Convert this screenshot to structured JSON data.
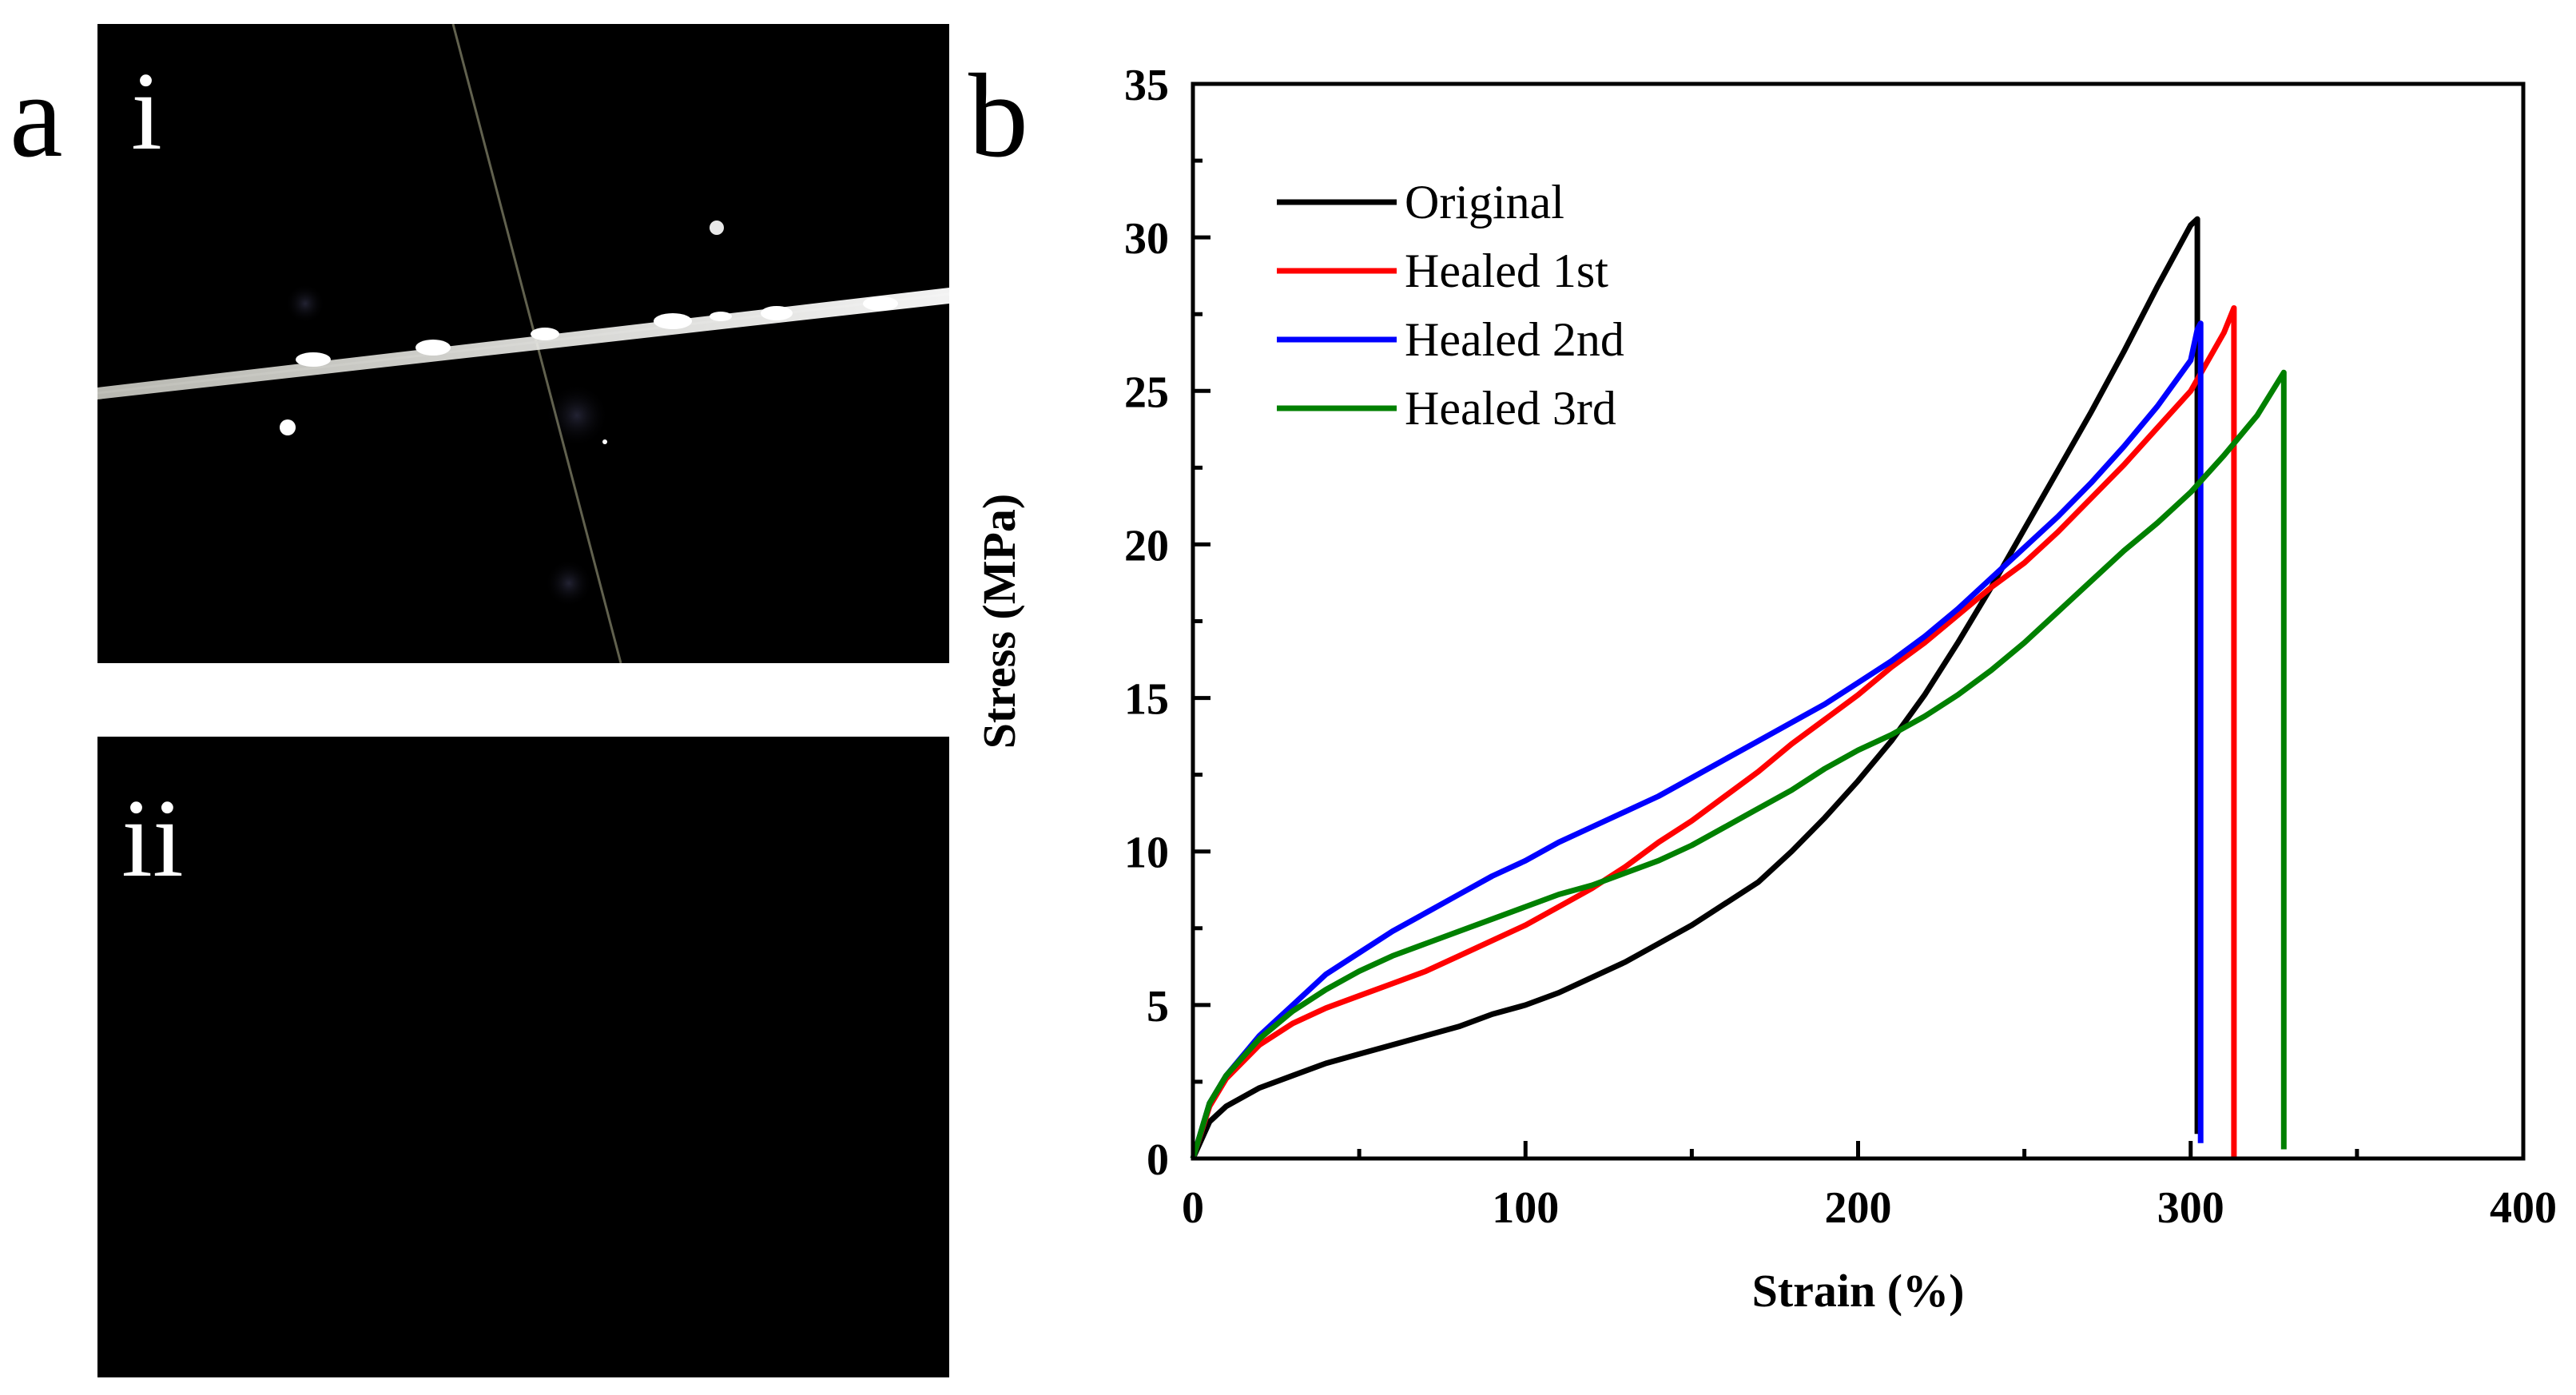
{
  "panels": {
    "a": {
      "letter": "a",
      "sub_top": "i",
      "sub_bottom": "ii"
    },
    "b": {
      "letter": "b"
    }
  },
  "chart_data": {
    "type": "line",
    "title": "",
    "xlabel": "Strain (%)",
    "ylabel": "Stress (MPa)",
    "xlim": [
      0,
      400
    ],
    "ylim": [
      0,
      35
    ],
    "xticks": [
      0,
      100,
      200,
      300,
      400
    ],
    "yticks": [
      0,
      5,
      10,
      15,
      20,
      25,
      30,
      35
    ],
    "grid": false,
    "legend_position": "top-left",
    "series": [
      {
        "name": "Original",
        "color": "#000000",
        "x": [
          0,
          5,
          10,
          20,
          30,
          40,
          50,
          60,
          70,
          80,
          90,
          100,
          110,
          120,
          130,
          140,
          150,
          160,
          170,
          180,
          190,
          200,
          210,
          220,
          230,
          240,
          250,
          260,
          270,
          280,
          290,
          300,
          302,
          302
        ],
        "y": [
          0,
          1.2,
          1.7,
          2.3,
          2.7,
          3.1,
          3.4,
          3.7,
          4.0,
          4.3,
          4.7,
          5.0,
          5.4,
          5.9,
          6.4,
          7.0,
          7.6,
          8.3,
          9.0,
          10.0,
          11.1,
          12.3,
          13.6,
          15.1,
          16.8,
          18.6,
          20.5,
          22.4,
          24.3,
          26.3,
          28.4,
          30.4,
          30.6,
          0.8
        ]
      },
      {
        "name": "Healed 1st",
        "color": "#ff0000",
        "x": [
          0,
          5,
          10,
          20,
          30,
          40,
          50,
          60,
          70,
          80,
          90,
          100,
          110,
          120,
          130,
          140,
          150,
          160,
          170,
          180,
          190,
          200,
          210,
          220,
          230,
          240,
          250,
          260,
          270,
          280,
          290,
          300,
          310,
          313,
          313
        ],
        "y": [
          0,
          1.7,
          2.6,
          3.7,
          4.4,
          4.9,
          5.3,
          5.7,
          6.1,
          6.6,
          7.1,
          7.6,
          8.2,
          8.8,
          9.5,
          10.3,
          11.0,
          11.8,
          12.6,
          13.5,
          14.3,
          15.1,
          16.0,
          16.8,
          17.7,
          18.6,
          19.4,
          20.4,
          21.5,
          22.6,
          23.8,
          25.0,
          26.9,
          27.7,
          0
        ]
      },
      {
        "name": "Healed 2nd",
        "color": "#0000ff",
        "x": [
          0,
          5,
          10,
          20,
          30,
          40,
          50,
          60,
          70,
          80,
          90,
          100,
          110,
          120,
          130,
          140,
          150,
          160,
          170,
          180,
          190,
          200,
          210,
          220,
          230,
          240,
          250,
          260,
          270,
          280,
          290,
          300,
          302,
          303,
          303
        ],
        "y": [
          0,
          1.8,
          2.7,
          4.0,
          5.0,
          6.0,
          6.7,
          7.4,
          8.0,
          8.6,
          9.2,
          9.7,
          10.3,
          10.8,
          11.3,
          11.8,
          12.4,
          13.0,
          13.6,
          14.2,
          14.8,
          15.5,
          16.2,
          17.0,
          17.9,
          18.9,
          19.9,
          20.9,
          22.0,
          23.2,
          24.5,
          26.0,
          27.0,
          27.2,
          0.5
        ]
      },
      {
        "name": "Healed 3rd",
        "color": "#008000",
        "x": [
          0,
          5,
          10,
          20,
          30,
          40,
          50,
          60,
          70,
          80,
          90,
          100,
          110,
          120,
          130,
          140,
          150,
          160,
          170,
          180,
          190,
          200,
          210,
          220,
          230,
          240,
          250,
          260,
          270,
          280,
          290,
          300,
          310,
          320,
          328,
          328,
          328
        ],
        "y": [
          0,
          1.8,
          2.7,
          3.9,
          4.8,
          5.5,
          6.1,
          6.6,
          7.0,
          7.4,
          7.8,
          8.2,
          8.6,
          8.9,
          9.3,
          9.7,
          10.2,
          10.8,
          11.4,
          12.0,
          12.7,
          13.3,
          13.8,
          14.4,
          15.1,
          15.9,
          16.8,
          17.8,
          18.8,
          19.8,
          20.7,
          21.7,
          22.9,
          24.2,
          25.6,
          20.8,
          0.3
        ]
      }
    ]
  }
}
